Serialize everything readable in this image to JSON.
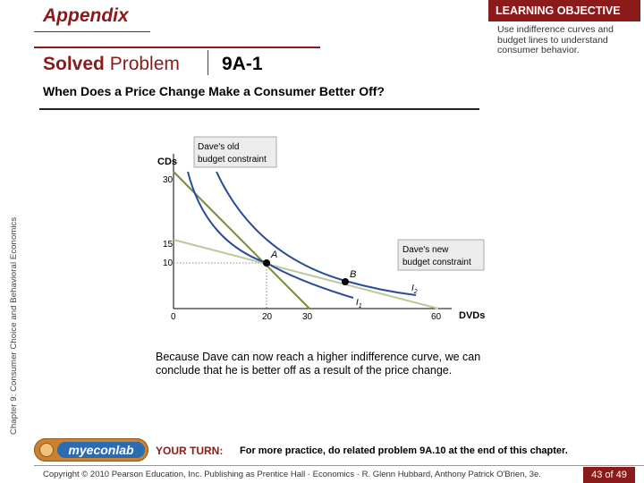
{
  "sidebar": {
    "chapter": "Chapter 9: Consumer Choice and Behavioral Economics"
  },
  "header": {
    "appendix": "Appendix",
    "solved_word": "Solved",
    "problem_word": "Problem",
    "problem_number": "9A-1",
    "question": "When Does a Price Change Make a Consumer Better Off?"
  },
  "learning_objective": {
    "title": "LEARNING OBJECTIVE",
    "text": "Use indifference curves and budget lines to understand consumer behavior."
  },
  "chart_data": {
    "type": "line",
    "xlabel": "DVDs",
    "ylabel": "CDs",
    "x_ticks": [
      "0",
      "20",
      "30",
      "60"
    ],
    "y_ticks": [
      "10",
      "15",
      "30"
    ],
    "xlim": [
      0,
      60
    ],
    "ylim": [
      0,
      30
    ],
    "series": [
      {
        "name": "Dave's old budget constraint",
        "points": [
          [
            0,
            30
          ],
          [
            30,
            0
          ]
        ]
      },
      {
        "name": "Dave's new budget constraint",
        "points": [
          [
            0,
            15
          ],
          [
            60,
            0
          ]
        ]
      },
      {
        "name": "I1",
        "points": [
          [
            3,
            30
          ],
          [
            8,
            20
          ],
          [
            14,
            14
          ],
          [
            20,
            10
          ],
          [
            28,
            6
          ],
          [
            40,
            2.5
          ]
        ]
      },
      {
        "name": "I2",
        "points": [
          [
            9,
            30
          ],
          [
            14,
            22
          ],
          [
            20,
            16
          ],
          [
            26,
            12
          ],
          [
            32,
            8.5
          ],
          [
            38,
            6.6
          ],
          [
            46,
            4.6
          ],
          [
            56,
            3
          ]
        ]
      }
    ],
    "points": [
      {
        "label": "A",
        "x": 20,
        "y": 10
      },
      {
        "label": "B",
        "x": 38,
        "y": 5.5
      }
    ],
    "annotations": {
      "old_line1": "Dave's old",
      "old_line2": "budget constraint",
      "new_line1": "Dave's new",
      "new_line2": "budget constraint",
      "i1_label": "I",
      "i1_sub": "1",
      "i2_label": "I",
      "i2_sub": "2"
    }
  },
  "explanation": "Because Dave can now reach a higher indifference curve, we can conclude that he is better off as a result of the price change.",
  "footer": {
    "logo": "myeconlab",
    "your_turn": "YOUR TURN:",
    "practice": "For more practice, do related problem 9A.10 at the end of this chapter.",
    "copyright": "Copyright © 2010 Pearson Education, Inc. Publishing as Prentice Hall · Economics · R. Glenn Hubbard, Anthony Patrick O'Brien, 3e.",
    "page": "43 of 49"
  },
  "colors": {
    "brand": "#8b1a1a",
    "old_budget": "#7a8b3a",
    "new_budget": "#b8c99a",
    "indifference": "#2a4b9b"
  }
}
